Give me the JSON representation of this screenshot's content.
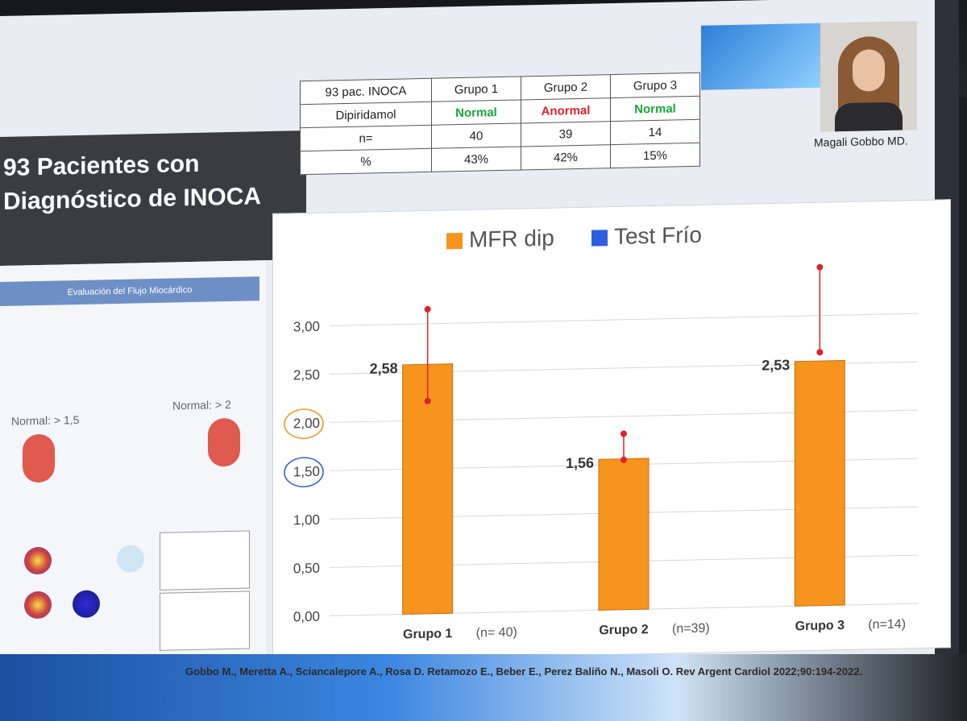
{
  "slide": {
    "title_line1": "93 Pacientes con",
    "title_line2": "Diagnóstico de INOCA",
    "speaker": "Magali Gobbo MD.",
    "citation": "Gobbo M., Meretta A., Sciancalepore A., Rosa D. Retamozo E., Beber E., Perez Baliño N., Masoli O.  Rev Argent Cardiol 2022;90:194-2022."
  },
  "table": {
    "header": [
      "93 pac. INOCA",
      "Grupo 1",
      "Grupo 2",
      "Grupo 3"
    ],
    "dip_label": "Dipiridamol",
    "dip_values": [
      "Normal",
      "Anormal",
      "Normal"
    ],
    "n_label": "n=",
    "n_values": [
      "40",
      "39",
      "14"
    ],
    "pct_label": "%",
    "pct_values": [
      "43%",
      "42%",
      "15%"
    ]
  },
  "left_panel": {
    "heading": "Evaluación del Flujo Miocárdico",
    "normal_left": "Normal: > 1,5",
    "normal_right": "Normal: > 2"
  },
  "chart_data": {
    "type": "bar",
    "legend": [
      "MFR dip",
      "Test Frío"
    ],
    "legend_colors": [
      "#f7941d",
      "#2f5de0"
    ],
    "categories": [
      "Grupo 1",
      "Grupo 2",
      "Grupo 3"
    ],
    "counts": [
      "(n= 40)",
      "(n=39)",
      "(n=14)"
    ],
    "values": [
      2.58,
      1.56,
      2.53
    ],
    "value_labels": [
      "2,58",
      "1,56",
      "2,53"
    ],
    "error_upper": [
      3.15,
      1.82,
      3.5
    ],
    "error_lower": [
      2.2,
      1.55,
      2.62
    ],
    "yticks": [
      "0,00",
      "0,50",
      "1,00",
      "1,50",
      "2,00",
      "2,50",
      "3,00"
    ],
    "ylim": [
      0,
      3.5
    ],
    "bar_color": "#f7941d",
    "error_color": "#e0202a"
  }
}
